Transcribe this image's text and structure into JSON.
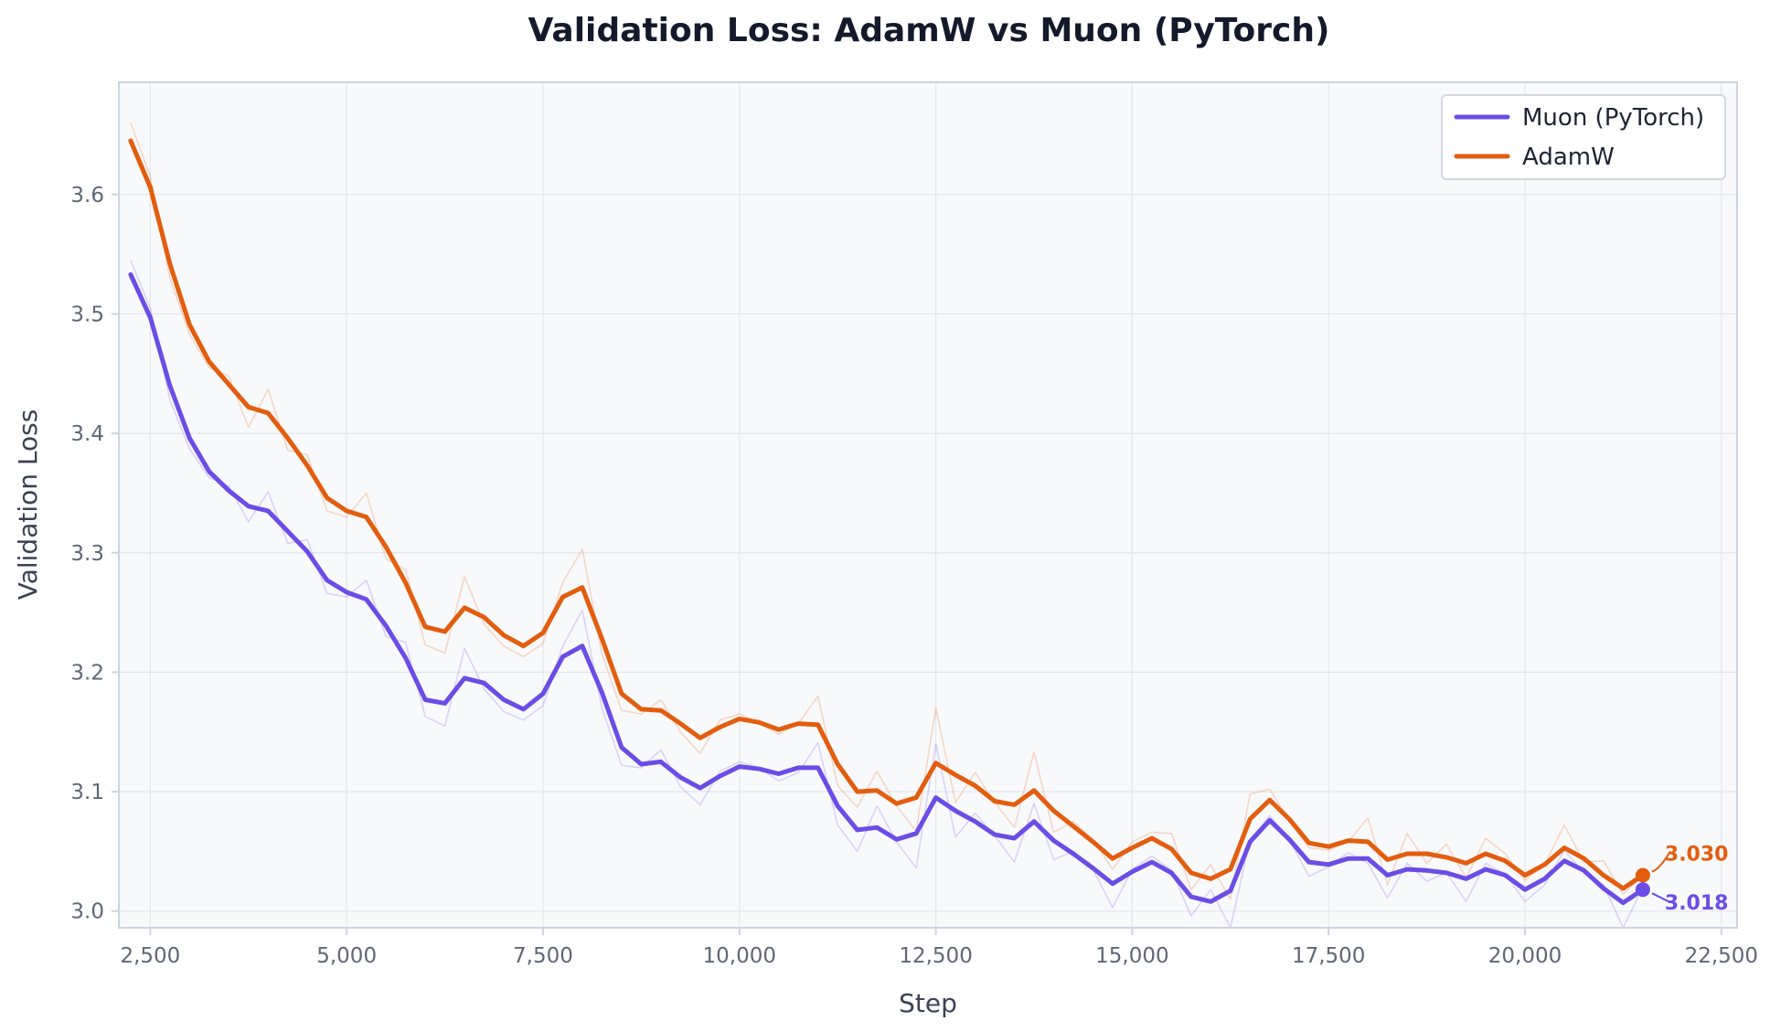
{
  "colors": {
    "muon": "#6b4de6",
    "adamw": "#e35d0e",
    "plot_bg": "#f8f9fb",
    "grid": "#e3e5ea",
    "frame": "#cfd3de",
    "title": "#141a2b",
    "tick": "#5f6675",
    "axis_label": "#3b4152"
  },
  "chart_data": {
    "type": "line",
    "title": "Validation Loss: AdamW vs Muon (PyTorch)",
    "xlabel": "Step",
    "ylabel": "Validation Loss",
    "xlim": [
      2100,
      22700
    ],
    "ylim": [
      2.986,
      3.694
    ],
    "xticks": [
      2500,
      5000,
      7500,
      10000,
      12500,
      15000,
      17500,
      20000,
      22500
    ],
    "xtick_labels": [
      "2,500",
      "5,000",
      "7,500",
      "10,000",
      "12,500",
      "15,000",
      "17,500",
      "20,000",
      "22,500"
    ],
    "yticks": [
      3.0,
      3.1,
      3.2,
      3.3,
      3.4,
      3.5,
      3.6
    ],
    "ytick_labels": [
      "3.0",
      "3.1",
      "3.2",
      "3.3",
      "3.4",
      "3.5",
      "3.6"
    ],
    "grid": true,
    "legend_position": "top-right",
    "x": [
      2250,
      2500,
      2750,
      3000,
      3250,
      3500,
      3750,
      4000,
      4250,
      4500,
      4750,
      5000,
      5250,
      5500,
      5750,
      6000,
      6250,
      6500,
      6750,
      7000,
      7250,
      7500,
      7750,
      8000,
      8250,
      8500,
      8750,
      9000,
      9250,
      9500,
      9750,
      10000,
      10250,
      10500,
      10750,
      11000,
      11250,
      11500,
      11750,
      12000,
      12250,
      12500,
      12750,
      13000,
      13250,
      13500,
      13750,
      14000,
      14250,
      14500,
      14750,
      15000,
      15250,
      15500,
      15750,
      16000,
      16250,
      16500,
      16750,
      17000,
      17250,
      17500,
      17750,
      18000,
      18250,
      18500,
      18750,
      19000,
      19250,
      19500,
      19750,
      20000,
      20250,
      20500,
      20750,
      21000,
      21250,
      21500
    ],
    "series": [
      {
        "name": "Muon (PyTorch)",
        "color_key": "muon",
        "values": [
          3.533,
          3.497,
          3.44,
          3.396,
          3.368,
          3.352,
          3.339,
          3.335,
          3.318,
          3.301,
          3.277,
          3.267,
          3.261,
          3.239,
          3.212,
          3.177,
          3.174,
          3.195,
          3.191,
          3.177,
          3.169,
          3.182,
          3.213,
          3.222,
          3.183,
          3.137,
          3.123,
          3.125,
          3.112,
          3.103,
          3.113,
          3.121,
          3.119,
          3.115,
          3.12,
          3.12,
          3.088,
          3.068,
          3.07,
          3.06,
          3.065,
          3.095,
          3.084,
          3.075,
          3.064,
          3.061,
          3.075,
          3.059,
          3.048,
          3.036,
          3.023,
          3.033,
          3.041,
          3.032,
          3.012,
          3.008,
          3.017,
          3.058,
          3.076,
          3.06,
          3.041,
          3.039,
          3.044,
          3.044,
          3.03,
          3.035,
          3.034,
          3.032,
          3.027,
          3.035,
          3.03,
          3.018,
          3.027,
          3.042,
          3.034,
          3.019,
          3.007,
          3.018
        ],
        "raw_values": [
          3.545,
          3.505,
          3.428,
          3.387,
          3.363,
          3.356,
          3.326,
          3.351,
          3.308,
          3.311,
          3.266,
          3.263,
          3.277,
          3.23,
          3.225,
          3.163,
          3.155,
          3.22,
          3.186,
          3.167,
          3.16,
          3.172,
          3.222,
          3.252,
          3.17,
          3.122,
          3.12,
          3.135,
          3.104,
          3.089,
          3.117,
          3.125,
          3.12,
          3.109,
          3.116,
          3.141,
          3.072,
          3.05,
          3.088,
          3.058,
          3.036,
          3.14,
          3.062,
          3.082,
          3.063,
          3.041,
          3.09,
          3.043,
          3.05,
          3.035,
          3.003,
          3.035,
          3.046,
          3.034,
          2.996,
          3.018,
          2.986,
          3.06,
          3.08,
          3.06,
          3.029,
          3.037,
          3.049,
          3.04,
          3.011,
          3.04,
          3.025,
          3.032,
          3.008,
          3.04,
          3.031,
          3.008,
          3.022,
          3.051,
          3.032,
          3.022,
          2.986,
          3.02
        ]
      },
      {
        "name": "AdamW",
        "color_key": "adamw",
        "values": [
          3.645,
          3.606,
          3.542,
          3.491,
          3.46,
          3.441,
          3.422,
          3.417,
          3.396,
          3.373,
          3.346,
          3.335,
          3.33,
          3.305,
          3.275,
          3.238,
          3.234,
          3.254,
          3.246,
          3.231,
          3.222,
          3.233,
          3.263,
          3.271,
          3.228,
          3.182,
          3.169,
          3.168,
          3.157,
          3.145,
          3.154,
          3.161,
          3.158,
          3.152,
          3.157,
          3.156,
          3.123,
          3.1,
          3.101,
          3.09,
          3.095,
          3.124,
          3.114,
          3.105,
          3.092,
          3.089,
          3.101,
          3.084,
          3.071,
          3.058,
          3.044,
          3.053,
          3.061,
          3.052,
          3.032,
          3.027,
          3.035,
          3.077,
          3.093,
          3.077,
          3.057,
          3.054,
          3.059,
          3.058,
          3.043,
          3.048,
          3.048,
          3.045,
          3.04,
          3.048,
          3.042,
          3.03,
          3.039,
          3.053,
          3.044,
          3.03,
          3.019,
          3.03
        ],
        "raw_values": [
          3.66,
          3.615,
          3.53,
          3.483,
          3.455,
          3.448,
          3.405,
          3.437,
          3.386,
          3.382,
          3.335,
          3.33,
          3.35,
          3.295,
          3.286,
          3.223,
          3.216,
          3.28,
          3.24,
          3.222,
          3.213,
          3.224,
          3.275,
          3.303,
          3.215,
          3.168,
          3.165,
          3.177,
          3.15,
          3.132,
          3.16,
          3.165,
          3.157,
          3.148,
          3.157,
          3.18,
          3.105,
          3.087,
          3.117,
          3.088,
          3.067,
          3.17,
          3.091,
          3.116,
          3.091,
          3.07,
          3.133,
          3.066,
          3.075,
          3.06,
          3.035,
          3.058,
          3.066,
          3.065,
          3.018,
          3.039,
          3.01,
          3.098,
          3.102,
          3.076,
          3.053,
          3.051,
          3.058,
          3.078,
          3.022,
          3.065,
          3.04,
          3.056,
          3.028,
          3.061,
          3.048,
          3.026,
          3.039,
          3.072,
          3.041,
          3.042,
          3.014,
          3.03
        ]
      }
    ],
    "annotations": [
      {
        "series": "AdamW",
        "x": 21500,
        "y": 3.03,
        "text": "3.030",
        "color_key": "adamw"
      },
      {
        "series": "Muon (PyTorch)",
        "x": 21500,
        "y": 3.018,
        "text": "3.018",
        "color_key": "muon"
      }
    ]
  }
}
